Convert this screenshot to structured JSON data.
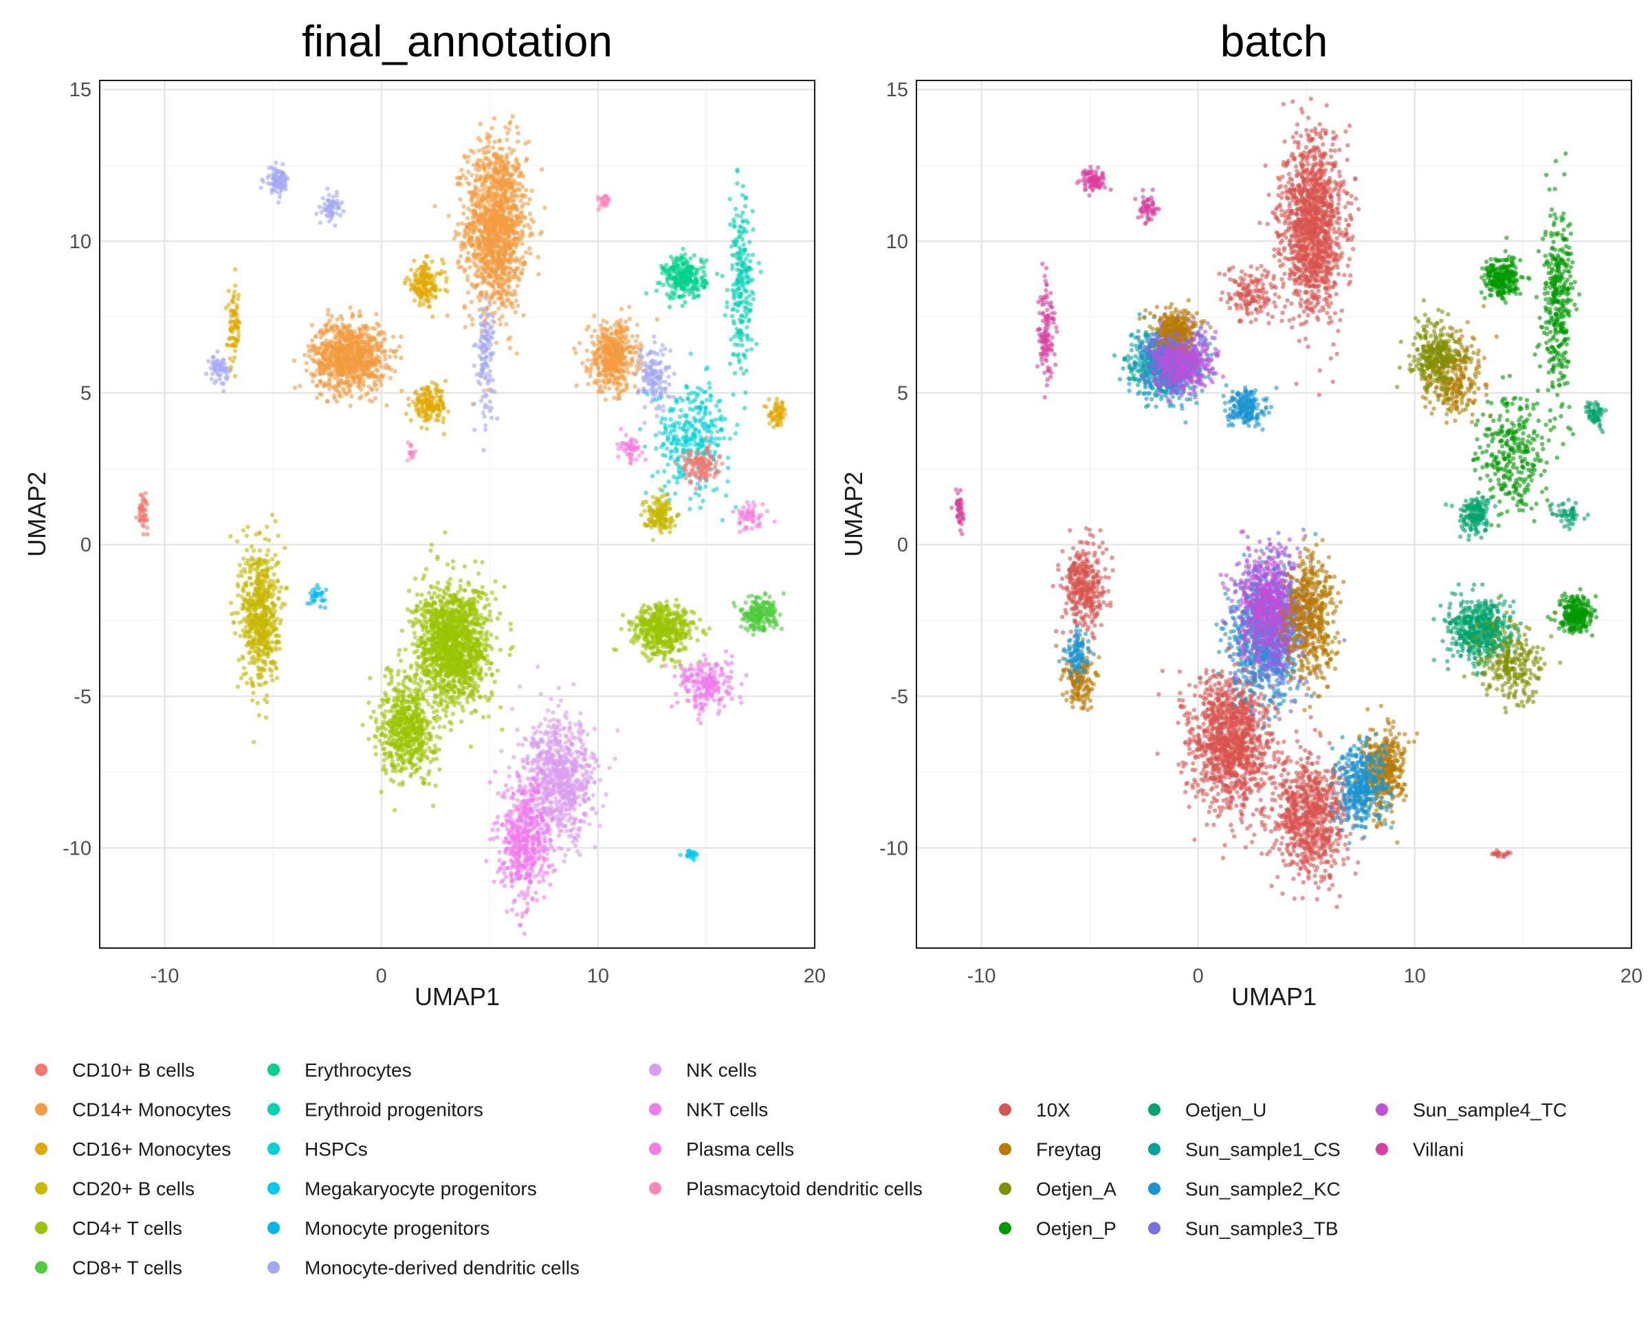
{
  "chart_data": [
    {
      "type": "scatter",
      "title": "final_annotation",
      "xlabel": "UMAP1",
      "ylabel": "UMAP2",
      "xlim": [
        -13,
        20
      ],
      "ylim": [
        -13.3,
        15.3
      ],
      "xticks": [
        -10,
        0,
        10,
        20
      ],
      "yticks": [
        -10,
        -5,
        0,
        5,
        10,
        15
      ],
      "grid": true,
      "legend_position": "bottom",
      "series": [
        {
          "name": "CD10+ B cells",
          "color": "#F8766D"
        },
        {
          "name": "CD14+ Monocytes",
          "color": "#F39B3F"
        },
        {
          "name": "CD16+ Monocytes",
          "color": "#E1A900"
        },
        {
          "name": "CD20+ B cells",
          "color": "#C7B800"
        },
        {
          "name": "CD4+ T cells",
          "color": "#9AC400"
        },
        {
          "name": "CD8+ T cells",
          "color": "#4FCC3C"
        },
        {
          "name": "Erythrocytes",
          "color": "#00D28A"
        },
        {
          "name": "Erythroid progenitors",
          "color": "#00D2B4"
        },
        {
          "name": "HSPCs",
          "color": "#00D2D8"
        },
        {
          "name": "Megakaryocyte progenitors",
          "color": "#00C8F0"
        },
        {
          "name": "Monocyte progenitors",
          "color": "#00B6EF"
        },
        {
          "name": "Monocyte-derived dendritic cells",
          "color": "#A3A8F5"
        },
        {
          "name": "NK cells",
          "color": "#DA9DEF"
        },
        {
          "name": "NKT cells",
          "color": "#F07BEC"
        },
        {
          "name": "Plasma cells",
          "color": "#F77EE0"
        },
        {
          "name": "Plasmacytoid dendritic cells",
          "color": "#FF86BE"
        }
      ],
      "clusters": [
        {
          "series": "CD14+ Monocytes",
          "cx": 5.3,
          "cy": 10.5,
          "sx": 1.0,
          "sy": 2.0,
          "n": 1300
        },
        {
          "series": "CD14+ Monocytes",
          "cx": -1.5,
          "cy": 6.2,
          "sx": 1.2,
          "sy": 0.8,
          "n": 900
        },
        {
          "series": "CD14+ Monocytes",
          "cx": 10.7,
          "cy": 6.2,
          "sx": 0.8,
          "sy": 0.8,
          "n": 450
        },
        {
          "series": "CD16+ Monocytes",
          "cx": 2.0,
          "cy": 8.6,
          "sx": 0.6,
          "sy": 0.5,
          "n": 160
        },
        {
          "series": "CD16+ Monocytes",
          "cx": 2.2,
          "cy": 4.6,
          "sx": 0.6,
          "sy": 0.4,
          "n": 160
        },
        {
          "series": "CD16+ Monocytes",
          "cx": -6.8,
          "cy": 7.2,
          "sx": 0.2,
          "sy": 0.9,
          "n": 80
        },
        {
          "series": "CD16+ Monocytes",
          "cx": 18.3,
          "cy": 4.3,
          "sx": 0.3,
          "sy": 0.3,
          "n": 60
        },
        {
          "series": "Monocyte-derived dendritic cells",
          "cx": -4.8,
          "cy": 12.0,
          "sx": 0.4,
          "sy": 0.3,
          "n": 90
        },
        {
          "series": "Monocyte-derived dendritic cells",
          "cx": -2.3,
          "cy": 11.1,
          "sx": 0.3,
          "sy": 0.3,
          "n": 60
        },
        {
          "series": "Monocyte-derived dendritic cells",
          "cx": -7.5,
          "cy": 5.8,
          "sx": 0.3,
          "sy": 0.3,
          "n": 60
        },
        {
          "series": "Monocyte-derived dendritic cells",
          "cx": 4.8,
          "cy": 6.2,
          "sx": 0.3,
          "sy": 1.4,
          "n": 120
        },
        {
          "series": "Monocyte-derived dendritic cells",
          "cx": 12.6,
          "cy": 5.5,
          "sx": 0.5,
          "sy": 0.8,
          "n": 140
        },
        {
          "series": "Erythrocytes",
          "cx": 14.0,
          "cy": 8.8,
          "sx": 0.7,
          "sy": 0.5,
          "n": 260
        },
        {
          "series": "Erythroid progenitors",
          "cx": 16.6,
          "cy": 8.5,
          "sx": 0.4,
          "sy": 2.0,
          "n": 220
        },
        {
          "series": "HSPCs",
          "cx": 14.4,
          "cy": 3.5,
          "sx": 1.2,
          "sy": 1.3,
          "n": 320
        },
        {
          "series": "Megakaryocyte progenitors",
          "cx": 14.3,
          "cy": -10.2,
          "sx": 0.3,
          "sy": 0.1,
          "n": 24
        },
        {
          "series": "Monocyte progenitors",
          "cx": -3.0,
          "cy": -1.7,
          "sx": 0.3,
          "sy": 0.2,
          "n": 30
        },
        {
          "series": "CD10+ B cells",
          "cx": -11.0,
          "cy": 1.1,
          "sx": 0.15,
          "sy": 0.4,
          "n": 50
        },
        {
          "series": "CD10+ B cells",
          "cx": 14.7,
          "cy": 2.6,
          "sx": 0.6,
          "sy": 0.4,
          "n": 120
        },
        {
          "series": "Plasmacytoid dendritic cells",
          "cx": 10.3,
          "cy": 11.3,
          "sx": 0.2,
          "sy": 0.2,
          "n": 30
        },
        {
          "series": "Plasmacytoid dendritic cells",
          "cx": 1.4,
          "cy": 3.1,
          "sx": 0.15,
          "sy": 0.2,
          "n": 18
        },
        {
          "series": "CD20+ B cells",
          "cx": -5.6,
          "cy": -2.3,
          "sx": 0.6,
          "sy": 1.7,
          "n": 600
        },
        {
          "series": "CD20+ B cells",
          "cx": 12.8,
          "cy": 1.0,
          "sx": 0.5,
          "sy": 0.4,
          "n": 140
        },
        {
          "series": "CD4+ T cells",
          "cx": 3.3,
          "cy": -3.3,
          "sx": 1.2,
          "sy": 1.4,
          "n": 1400
        },
        {
          "series": "CD4+ T cells",
          "cx": 1.2,
          "cy": -6.0,
          "sx": 0.9,
          "sy": 1.2,
          "n": 600
        },
        {
          "series": "CD4+ T cells",
          "cx": 13.0,
          "cy": -2.8,
          "sx": 1.0,
          "sy": 0.6,
          "n": 500
        },
        {
          "series": "CD8+ T cells",
          "cx": 17.4,
          "cy": -2.3,
          "sx": 0.6,
          "sy": 0.4,
          "n": 200
        },
        {
          "series": "NK cells",
          "cx": 8.2,
          "cy": -7.8,
          "sx": 1.2,
          "sy": 1.4,
          "n": 800
        },
        {
          "series": "NKT cells",
          "cx": 6.6,
          "cy": -9.8,
          "sx": 0.8,
          "sy": 1.4,
          "n": 500
        },
        {
          "series": "NKT cells",
          "cx": 15.0,
          "cy": -4.6,
          "sx": 0.9,
          "sy": 0.6,
          "n": 220
        },
        {
          "series": "Plasma cells",
          "cx": 17.1,
          "cy": 0.9,
          "sx": 0.5,
          "sy": 0.3,
          "n": 60
        },
        {
          "series": "Plasma cells",
          "cx": 11.5,
          "cy": 3.2,
          "sx": 0.4,
          "sy": 0.3,
          "n": 60
        }
      ]
    },
    {
      "type": "scatter",
      "title": "batch",
      "xlabel": "UMAP1",
      "ylabel": "UMAP2",
      "xlim": [
        -13,
        20
      ],
      "ylim": [
        -13.3,
        15.3
      ],
      "xticks": [
        -10,
        0,
        10,
        20
      ],
      "yticks": [
        -10,
        -5,
        0,
        5,
        10,
        15
      ],
      "grid": true,
      "legend_position": "bottom",
      "series": [
        {
          "name": "10X",
          "color": "#D9534F"
        },
        {
          "name": "Freytag",
          "color": "#B97A00"
        },
        {
          "name": "Oetjen_A",
          "color": "#7F8F00"
        },
        {
          "name": "Oetjen_P",
          "color": "#009A00"
        },
        {
          "name": "Oetjen_U",
          "color": "#00A36A"
        },
        {
          "name": "Sun_sample1_CS",
          "color": "#00A39A"
        },
        {
          "name": "Sun_sample2_KC",
          "color": "#1B95D0"
        },
        {
          "name": "Sun_sample3_TB",
          "color": "#7A6CE3"
        },
        {
          "name": "Sun_sample4_TC",
          "color": "#C24FD8"
        },
        {
          "name": "Villani",
          "color": "#D93FA0"
        }
      ],
      "clusters": [
        {
          "series": "10X",
          "cx": 5.3,
          "cy": 10.5,
          "sx": 1.0,
          "sy": 2.0,
          "n": 1300
        },
        {
          "series": "10X",
          "cx": -5.3,
          "cy": -1.4,
          "sx": 0.7,
          "sy": 1.0,
          "n": 350
        },
        {
          "series": "10X",
          "cx": 1.5,
          "cy": -6.5,
          "sx": 1.3,
          "sy": 1.6,
          "n": 1200
        },
        {
          "series": "10X",
          "cx": 5.2,
          "cy": -9.0,
          "sx": 1.3,
          "sy": 1.4,
          "n": 800
        },
        {
          "series": "10X",
          "cx": 2.5,
          "cy": 8.2,
          "sx": 0.9,
          "sy": 0.6,
          "n": 150
        },
        {
          "series": "10X",
          "cx": 14.0,
          "cy": -10.2,
          "sx": 0.3,
          "sy": 0.1,
          "n": 20
        },
        {
          "series": "Villani",
          "cx": -4.8,
          "cy": 12.0,
          "sx": 0.4,
          "sy": 0.3,
          "n": 90
        },
        {
          "series": "Villani",
          "cx": -2.3,
          "cy": 11.1,
          "sx": 0.3,
          "sy": 0.3,
          "n": 60
        },
        {
          "series": "Villani",
          "cx": -7.0,
          "cy": 7.2,
          "sx": 0.3,
          "sy": 1.2,
          "n": 120
        },
        {
          "series": "Villani",
          "cx": -11.0,
          "cy": 1.1,
          "sx": 0.15,
          "sy": 0.4,
          "n": 50
        },
        {
          "series": "Sun_sample1_CS",
          "cx": -1.8,
          "cy": 6.0,
          "sx": 1.0,
          "sy": 0.7,
          "n": 400
        },
        {
          "series": "Sun_sample2_KC",
          "cx": -1.3,
          "cy": 5.8,
          "sx": 1.0,
          "sy": 0.7,
          "n": 400
        },
        {
          "series": "Sun_sample3_TB",
          "cx": -1.0,
          "cy": 6.3,
          "sx": 1.0,
          "sy": 0.7,
          "n": 400
        },
        {
          "series": "Sun_sample4_TC",
          "cx": -0.6,
          "cy": 6.0,
          "sx": 1.0,
          "sy": 0.7,
          "n": 300
        },
        {
          "series": "Freytag",
          "cx": -1.0,
          "cy": 7.2,
          "sx": 0.8,
          "sy": 0.4,
          "n": 200
        },
        {
          "series": "Sun_sample2_KC",
          "cx": 2.2,
          "cy": 4.5,
          "sx": 0.6,
          "sy": 0.4,
          "n": 200
        },
        {
          "series": "Sun_sample2_KC",
          "cx": 3.0,
          "cy": -3.0,
          "sx": 1.1,
          "sy": 1.5,
          "n": 700
        },
        {
          "series": "Sun_sample3_TB",
          "cx": 3.5,
          "cy": -2.5,
          "sx": 1.1,
          "sy": 1.5,
          "n": 600
        },
        {
          "series": "Sun_sample4_TC",
          "cx": 3.2,
          "cy": -2.0,
          "sx": 1.0,
          "sy": 1.3,
          "n": 500
        },
        {
          "series": "Freytag",
          "cx": 5.2,
          "cy": -2.5,
          "sx": 0.8,
          "sy": 1.5,
          "n": 500
        },
        {
          "series": "Freytag",
          "cx": 8.5,
          "cy": -7.5,
          "sx": 0.7,
          "sy": 1.0,
          "n": 400
        },
        {
          "series": "Sun_sample2_KC",
          "cx": 7.5,
          "cy": -8.0,
          "sx": 0.8,
          "sy": 1.0,
          "n": 400
        },
        {
          "series": "Freytag",
          "cx": -5.5,
          "cy": -4.5,
          "sx": 0.5,
          "sy": 0.6,
          "n": 150
        },
        {
          "series": "Sun_sample2_KC",
          "cx": -5.5,
          "cy": -3.6,
          "sx": 0.4,
          "sy": 0.5,
          "n": 100
        },
        {
          "series": "Oetjen_P",
          "cx": 14.0,
          "cy": 8.8,
          "sx": 0.6,
          "sy": 0.5,
          "n": 250
        },
        {
          "series": "Oetjen_P",
          "cx": 16.6,
          "cy": 8.0,
          "sx": 0.5,
          "sy": 2.2,
          "n": 350
        },
        {
          "series": "Oetjen_P",
          "cx": 14.5,
          "cy": 3.0,
          "sx": 1.0,
          "sy": 1.4,
          "n": 300
        },
        {
          "series": "Oetjen_P",
          "cx": 17.4,
          "cy": -2.3,
          "sx": 0.6,
          "sy": 0.4,
          "n": 250
        },
        {
          "series": "Freytag",
          "cx": 11.8,
          "cy": 5.5,
          "sx": 1.0,
          "sy": 1.0,
          "n": 250
        },
        {
          "series": "Oetjen_A",
          "cx": 11.0,
          "cy": 6.2,
          "sx": 0.9,
          "sy": 0.8,
          "n": 300
        },
        {
          "series": "Oetjen_U",
          "cx": 13.0,
          "cy": -2.8,
          "sx": 1.0,
          "sy": 0.7,
          "n": 500
        },
        {
          "series": "Oetjen_A",
          "cx": 14.5,
          "cy": -4.0,
          "sx": 1.0,
          "sy": 1.0,
          "n": 250
        },
        {
          "series": "Oetjen_U",
          "cx": 12.8,
          "cy": 1.0,
          "sx": 0.5,
          "sy": 0.4,
          "n": 150
        },
        {
          "series": "Oetjen_U",
          "cx": 18.3,
          "cy": 4.3,
          "sx": 0.3,
          "sy": 0.3,
          "n": 60
        },
        {
          "series": "Oetjen_U",
          "cx": 17.1,
          "cy": 1.0,
          "sx": 0.5,
          "sy": 0.3,
          "n": 50
        }
      ]
    }
  ]
}
